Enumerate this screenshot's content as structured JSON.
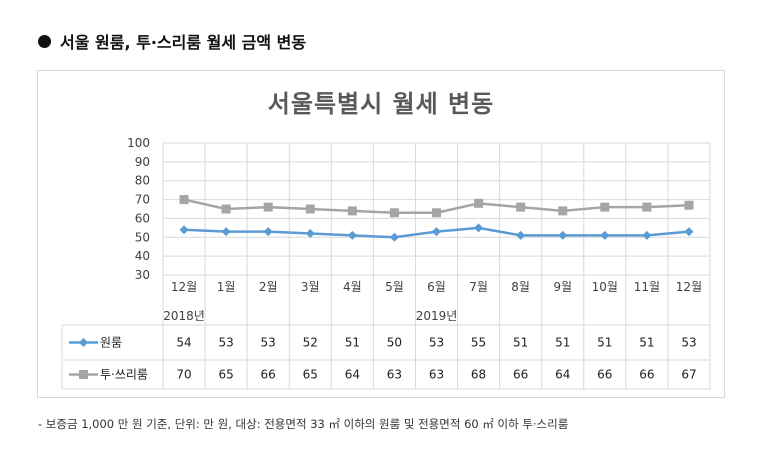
{
  "heading": "서울 원룸, 투·스리룸 월세 금액 변동",
  "footnote": "- 보증금 1,000 만 원 기준, 단위: 만 원, 대상: 전용면적 33 ㎡ 이하의 원룸 및 전용면적 60 ㎡ 이하 투·스리룸",
  "chart_data": {
    "type": "line",
    "title": "서울특별시 월세 변동",
    "categories": [
      "12월",
      "1월",
      "2월",
      "3월",
      "4월",
      "5월",
      "6월",
      "7월",
      "8월",
      "9월",
      "10월",
      "11월",
      "12월"
    ],
    "year_labels": [
      {
        "index": 0,
        "label": "2018년"
      },
      {
        "index": 6,
        "label": "2019년"
      }
    ],
    "ylim": [
      30,
      100
    ],
    "yticks": [
      30,
      40,
      50,
      60,
      70,
      80,
      90,
      100
    ],
    "grid": true,
    "data_table": true,
    "series": [
      {
        "name": "원룸",
        "color": "#5b9bd5",
        "marker": "diamond",
        "values": [
          54,
          53,
          53,
          52,
          51,
          50,
          53,
          55,
          51,
          51,
          51,
          51,
          53
        ]
      },
      {
        "name": "투·쓰리룸",
        "color": "#a5a5a5",
        "marker": "square",
        "values": [
          70,
          65,
          66,
          65,
          64,
          63,
          63,
          68,
          66,
          64,
          66,
          66,
          67
        ]
      }
    ]
  }
}
